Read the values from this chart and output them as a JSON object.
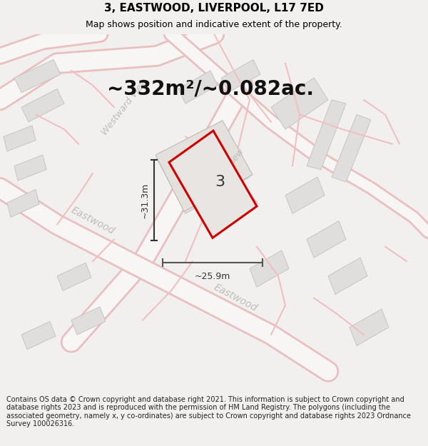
{
  "title_line1": "3, EASTWOOD, LIVERPOOL, L17 7ED",
  "title_line2": "Map shows position and indicative extent of the property.",
  "area_text": "~332m²/~0.082ac.",
  "property_number": "3",
  "width_label": "~25.9m",
  "height_label": "~31.3m",
  "footer_text": "Contains OS data © Crown copyright and database right 2021. This information is subject to Crown copyright and database rights 2023 and is reproduced with the permission of HM Land Registry. The polygons (including the associated geometry, namely x, y co-ordinates) are subject to Crown copyright and database rights 2023 Ordnance Survey 100026316.",
  "bg_color": "#f2f0ee",
  "map_bg": "#f0eeec",
  "road_color": "#f5d8d8",
  "road_outline": "#e8c0c0",
  "building_fill": "#e0dedd",
  "building_stroke": "#c8c4c0",
  "property_fill": "#e8e5e2",
  "property_stroke": "#cc0000",
  "annotation_color": "#333333",
  "street_label_color": "#c0bcb8",
  "title_fontsize": 11,
  "subtitle_fontsize": 9,
  "area_fontsize": 20,
  "prop_num_fontsize": 16,
  "label_fontsize": 9,
  "street_fontsize": 9,
  "footer_fontsize": 7
}
